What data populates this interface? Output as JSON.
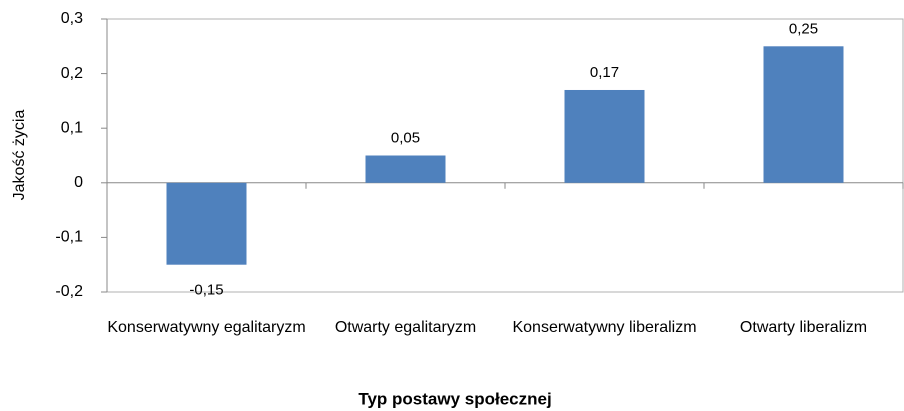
{
  "chart_data": {
    "type": "bar",
    "xlabel": "Typ postawy społecznej",
    "ylabel": "Jakość życia",
    "categories": [
      "Konserwatywny egalitaryzm",
      "Otwarty egalitaryzm",
      "Konserwatywny liberalizm",
      "Otwarty liberalizm"
    ],
    "values": [
      -0.15,
      0.05,
      0.17,
      0.25
    ],
    "value_labels": [
      "-0,15",
      "0,05",
      "0,17",
      "0,25"
    ],
    "color": "#4f81bd",
    "ylim": [
      -0.2,
      0.3
    ],
    "yticks": [
      {
        "value": -0.2,
        "label": "-0,2"
      },
      {
        "value": -0.1,
        "label": "-0,1"
      },
      0,
      {
        "value": 0.1,
        "label": "0,1"
      },
      {
        "value": 0.2,
        "label": "0,2"
      },
      {
        "value": 0.3,
        "label": "0,3"
      }
    ]
  }
}
